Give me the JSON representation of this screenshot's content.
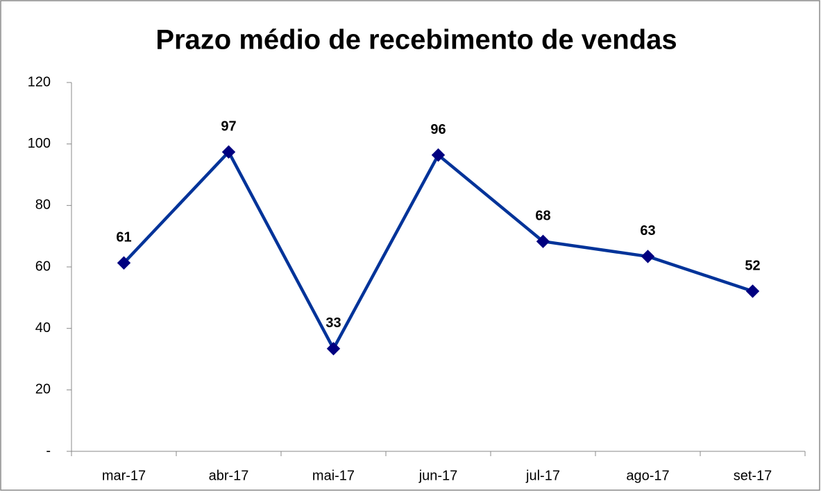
{
  "chart_data": {
    "type": "line",
    "title": "Prazo médio de recebimento de vendas",
    "categories": [
      "mar-17",
      "abr-17",
      "mai-17",
      "jun-17",
      "jul-17",
      "ago-17",
      "set-17"
    ],
    "values": [
      61.3,
      97.4,
      33.4,
      96.4,
      68.3,
      63.4,
      52.1
    ],
    "value_labels": [
      "61",
      "97",
      "33",
      "96",
      "68",
      "63",
      "52"
    ],
    "color": "#003399",
    "marker_color": "#000080",
    "ylim": [
      0,
      120
    ],
    "yticks": [
      {
        "value": 0,
        "label": "-"
      },
      20,
      40,
      60,
      80,
      100,
      120
    ],
    "grid": false
  }
}
